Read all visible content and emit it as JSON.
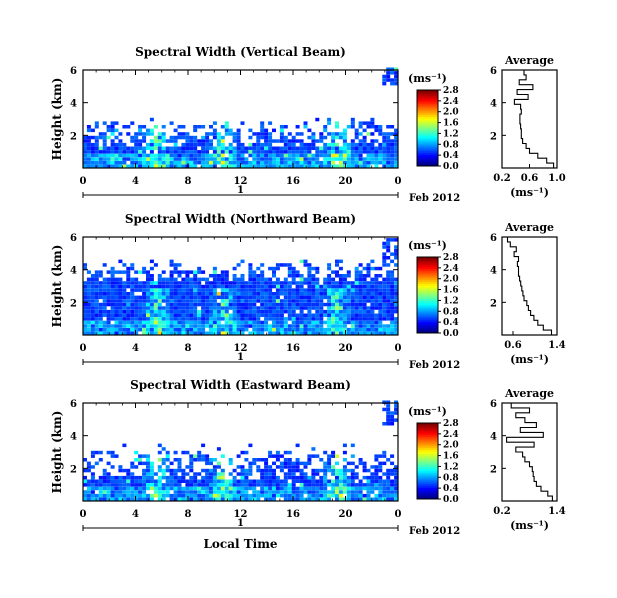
{
  "figure": {
    "xlabel_bottom": "Local Time",
    "date_label": "Feb 2012",
    "day_label": "1"
  },
  "chart_data": [
    {
      "type": "heatmap",
      "title": "Spectral Width (Vertical Beam)",
      "ylabel": "Height (km)",
      "xlabel": "Local Time",
      "xticks": [
        "0",
        "4",
        "8",
        "12",
        "16",
        "20",
        "0"
      ],
      "xlim": [
        0,
        24
      ],
      "yticks": [
        "2",
        "4",
        "6"
      ],
      "ylim": [
        0,
        6
      ],
      "colorbar": {
        "unit": "(ms⁻¹)",
        "ticks": [
          "0.0",
          "0.4",
          "0.8",
          "1.2",
          "1.6",
          "2.0",
          "2.4",
          "2.8"
        ],
        "range": [
          0,
          2.8
        ],
        "colormap": "jet"
      },
      "data_coverage": {
        "dense_height_km": [
          0,
          1.3
        ],
        "sparse_height_km": [
          1.3,
          3.0
        ],
        "upper_echo_near_end_km": [
          5.0,
          6.0
        ]
      },
      "average_profile": {
        "title": "Average",
        "xlabel": "(ms⁻¹)",
        "xticks": [
          "0.2",
          "0.6",
          "1.0"
        ],
        "xlim": [
          0.2,
          1.0
        ],
        "yticks": [
          "2",
          "4",
          "6"
        ],
        "ylim": [
          0,
          6
        ],
        "height_km": [
          0.3,
          0.6,
          0.9,
          1.2,
          1.5,
          1.8,
          2.1,
          2.4,
          2.7,
          3.0,
          3.3,
          3.6,
          3.9,
          4.2,
          4.5,
          4.8,
          5.1,
          5.4,
          5.7,
          6.0
        ],
        "width": [
          0.95,
          0.85,
          0.72,
          0.6,
          0.55,
          0.5,
          0.48,
          0.48,
          0.47,
          0.46,
          0.46,
          0.48,
          0.47,
          0.38,
          0.58,
          0.42,
          0.65,
          0.45,
          0.55,
          0.52
        ]
      }
    },
    {
      "type": "heatmap",
      "title": "Spectral Width (Northward Beam)",
      "ylabel": "Height (km)",
      "xlabel": "Local Time",
      "xticks": [
        "0",
        "4",
        "8",
        "12",
        "16",
        "20",
        "0"
      ],
      "xlim": [
        0,
        24
      ],
      "yticks": [
        "2",
        "4",
        "6"
      ],
      "ylim": [
        0,
        6
      ],
      "colorbar": {
        "unit": "(ms⁻¹)",
        "ticks": [
          "0.0",
          "0.4",
          "0.8",
          "1.2",
          "1.6",
          "2.0",
          "2.4",
          "2.8"
        ],
        "range": [
          0,
          2.8
        ],
        "colormap": "jet"
      },
      "data_coverage": {
        "dense_height_km": [
          0,
          3.2
        ],
        "sparse_height_km": [
          3.2,
          4.6
        ],
        "upper_echo_near_end_km": [
          4.0,
          5.8
        ]
      },
      "average_profile": {
        "title": "Average",
        "xlabel": "(ms⁻¹)",
        "xticks": [
          "0.6",
          "1.4"
        ],
        "xlim": [
          0.4,
          1.4
        ],
        "yticks": [
          "2",
          "4",
          "6"
        ],
        "ylim": [
          0,
          6
        ],
        "height_km": [
          0.3,
          0.6,
          0.9,
          1.2,
          1.5,
          1.8,
          2.1,
          2.4,
          2.7,
          3.0,
          3.3,
          3.6,
          3.9,
          4.2,
          4.5,
          4.8,
          5.1,
          5.4,
          5.7,
          6.0
        ],
        "width": [
          1.3,
          1.15,
          1.05,
          0.98,
          0.92,
          0.88,
          0.85,
          0.8,
          0.78,
          0.76,
          0.74,
          0.72,
          0.7,
          0.7,
          0.68,
          0.7,
          0.62,
          0.66,
          0.55,
          0.5
        ]
      }
    },
    {
      "type": "heatmap",
      "title": "Spectral Width (Eastward Beam)",
      "ylabel": "Height (km)",
      "xlabel": "Local Time",
      "xticks": [
        "0",
        "4",
        "8",
        "12",
        "16",
        "20",
        "0"
      ],
      "xlim": [
        0,
        24
      ],
      "yticks": [
        "2",
        "4",
        "6"
      ],
      "ylim": [
        0,
        6
      ],
      "colorbar": {
        "unit": "(ms⁻¹)",
        "ticks": [
          "0.0",
          "0.4",
          "0.8",
          "1.2",
          "1.6",
          "2.0",
          "2.4",
          "2.8"
        ],
        "range": [
          0,
          2.8
        ],
        "colormap": "jet"
      },
      "data_coverage": {
        "dense_height_km": [
          0,
          1.2
        ],
        "sparse_height_km": [
          1.2,
          3.4
        ],
        "upper_echo_near_end_km": [
          4.5,
          6.0
        ]
      },
      "average_profile": {
        "title": "Average",
        "xlabel": "(ms⁻¹)",
        "xticks": [
          "0.2",
          "1.4"
        ],
        "xlim": [
          0.2,
          1.4
        ],
        "yticks": [
          "2",
          "4",
          "6"
        ],
        "ylim": [
          0,
          6
        ],
        "height_km": [
          0.3,
          0.6,
          0.9,
          1.2,
          1.5,
          1.8,
          2.1,
          2.4,
          2.7,
          3.0,
          3.3,
          3.6,
          3.9,
          4.2,
          4.5,
          4.8,
          5.1,
          5.4,
          5.7,
          6.0
        ],
        "width": [
          1.3,
          1.2,
          1.05,
          0.95,
          0.9,
          0.88,
          0.86,
          0.8,
          0.7,
          0.65,
          0.5,
          0.9,
          0.3,
          1.1,
          0.6,
          0.95,
          0.7,
          0.5,
          0.8,
          0.4
        ]
      }
    }
  ]
}
